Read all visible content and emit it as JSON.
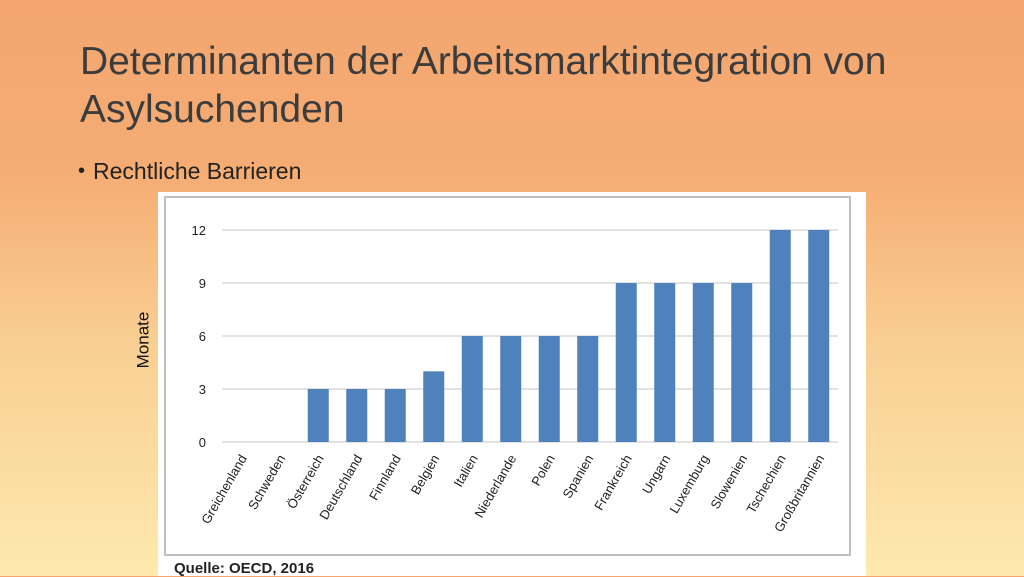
{
  "slide": {
    "title": "Determinanten der Arbeitsmarktintegration von Asylsuchenden",
    "bullet": "Rechtliche Barrieren",
    "ylabel": "Monate",
    "source": "Quelle: OECD, 2016"
  },
  "colors": {
    "bar": "#4f81bd",
    "grid": "#d9d9d9"
  },
  "chart_data": {
    "type": "bar",
    "categories": [
      "Greichenland",
      "Schweden",
      "Österreich",
      "Deutschland",
      "Finnland",
      "Belgien",
      "Italien",
      "Niederlande",
      "Polen",
      "Spanien",
      "Frankreich",
      "Ungarn",
      "Luxemburg",
      "Slowenien",
      "Tschechien",
      "Großbritannien"
    ],
    "values": [
      0,
      0,
      3,
      3,
      3,
      4,
      6,
      6,
      6,
      6,
      9,
      9,
      9,
      9,
      12,
      12
    ],
    "yticks": [
      "0",
      "3",
      "6",
      "9",
      "12"
    ],
    "ylim": [
      0,
      12
    ],
    "ylabel": "Monate",
    "grid": true,
    "legend": "none"
  }
}
